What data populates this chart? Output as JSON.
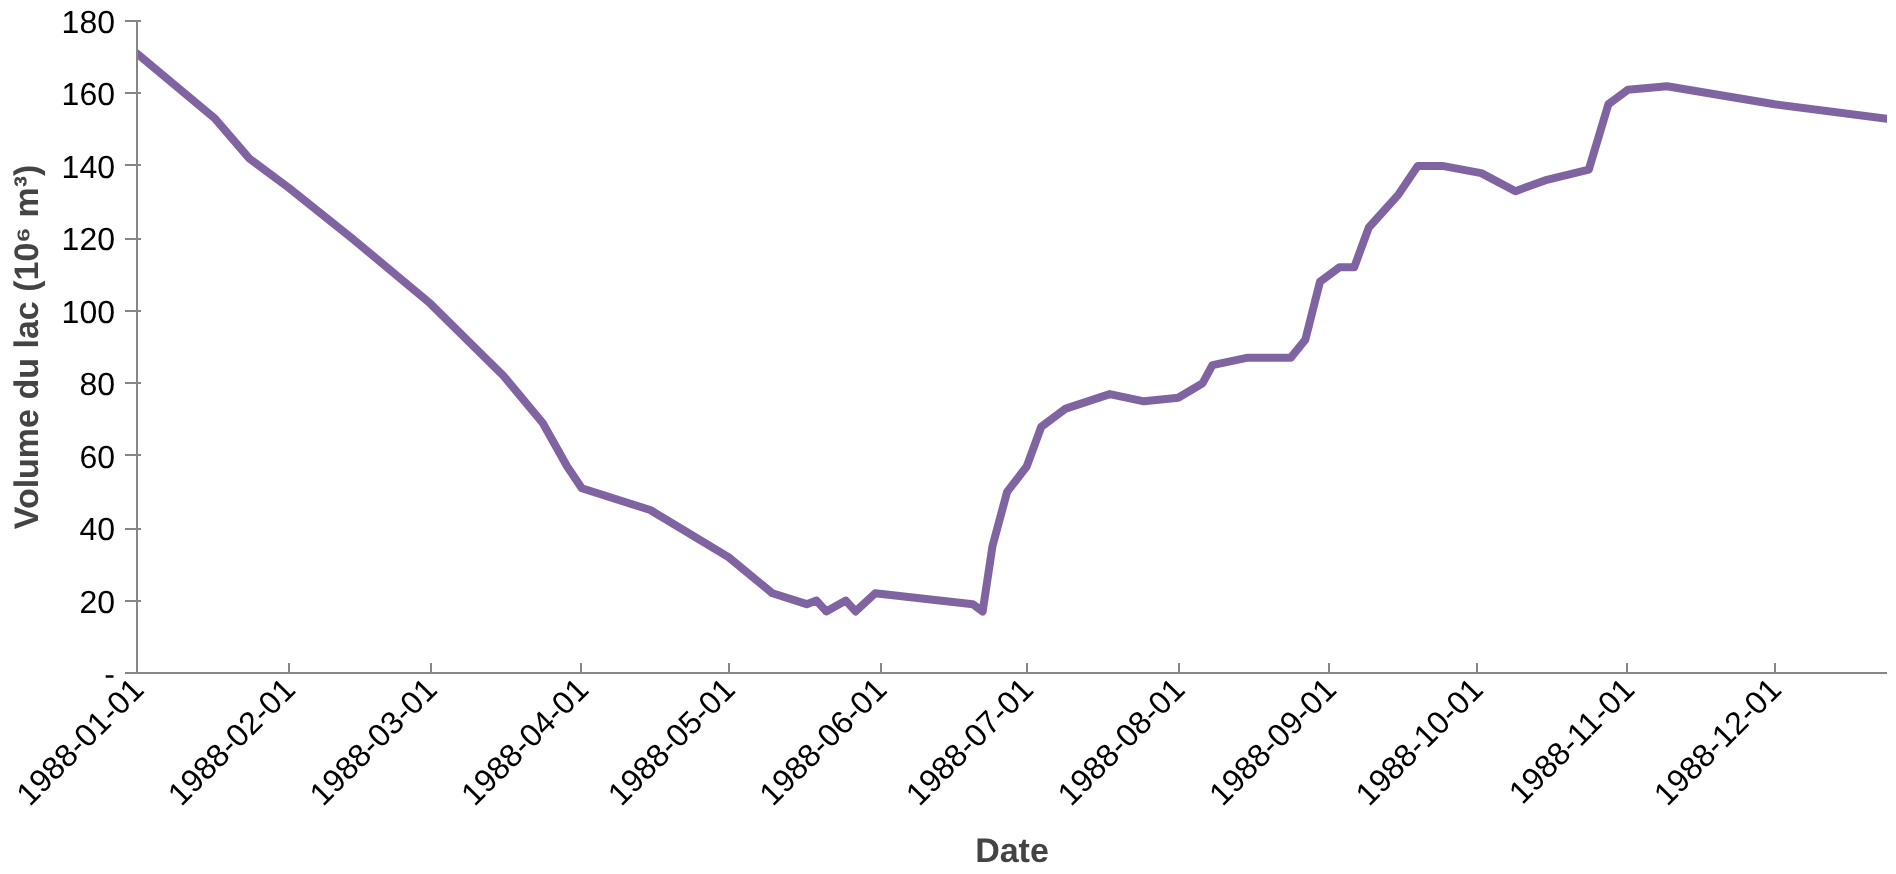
{
  "chart_data": {
    "type": "line",
    "xlabel": "Date",
    "ylabel": "Volume du lac (10⁶ m³)",
    "xlim": [
      "1988-01-01",
      "1988-12-24"
    ],
    "xticks": [
      "1988-01-01",
      "1988-02-01",
      "1988-03-01",
      "1988-04-01",
      "1988-05-01",
      "1988-06-01",
      "1988-07-01",
      "1988-08-01",
      "1988-09-01",
      "1988-10-01",
      "1988-11-01",
      "1988-12-01"
    ],
    "ylim": [
      0,
      180
    ],
    "yticks": [
      {
        "value": 0,
        "label": "-"
      },
      20,
      40,
      60,
      80,
      100,
      120,
      140,
      160,
      180
    ],
    "grid": false,
    "line_style": "solid",
    "series": [
      {
        "color": "#8064a2",
        "x": [
          "1988-01-01",
          "1988-01-17",
          "1988-01-24",
          "1988-02-01",
          "1988-02-14",
          "1988-03-01",
          "1988-03-16",
          "1988-03-24",
          "1988-03-29",
          "1988-04-01",
          "1988-04-15",
          "1988-05-01",
          "1988-05-10",
          "1988-05-17",
          "1988-05-19",
          "1988-05-21",
          "1988-05-25",
          "1988-05-27",
          "1988-05-31",
          "1988-06-20",
          "1988-06-22",
          "1988-06-24",
          "1988-06-27",
          "1988-07-01",
          "1988-07-04",
          "1988-07-09",
          "1988-07-18",
          "1988-07-25",
          "1988-08-01",
          "1988-08-06",
          "1988-08-08",
          "1988-08-15",
          "1988-08-24",
          "1988-08-27",
          "1988-08-30",
          "1988-09-03",
          "1988-09-06",
          "1988-09-09",
          "1988-09-15",
          "1988-09-19",
          "1988-09-24",
          "1988-10-02",
          "1988-10-09",
          "1988-10-15",
          "1988-10-24",
          "1988-10-28",
          "1988-11-01",
          "1988-11-09",
          "1988-12-01",
          "1988-12-24"
        ],
        "values": [
          171,
          153,
          142,
          134,
          120,
          102,
          82,
          69,
          57,
          51,
          45,
          32,
          22,
          19,
          20,
          17,
          20,
          17,
          22,
          19,
          17,
          35,
          50,
          57,
          68,
          73,
          77,
          75,
          76,
          80,
          85,
          87,
          87,
          92,
          108,
          112,
          112,
          123,
          132,
          140,
          140,
          138,
          133,
          136,
          139,
          157,
          161,
          162,
          157,
          153
        ]
      }
    ]
  }
}
